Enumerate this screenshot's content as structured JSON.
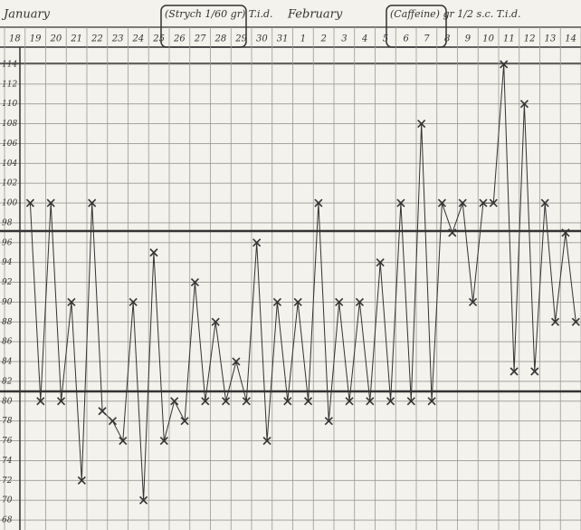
{
  "chart_data": {
    "type": "line",
    "months": [
      "January",
      "February"
    ],
    "annotations": [
      "(Strych 1/60 gr) T.i.d.",
      "(Caffeine) gr 1/2 s.c. T.i.d."
    ],
    "categories": [
      "18",
      null,
      "19",
      null,
      "20",
      null,
      "21",
      null,
      "22",
      null,
      "23",
      null,
      "24",
      null,
      "25",
      null,
      "26",
      null,
      "27",
      null,
      "28",
      null,
      "29",
      null,
      "30",
      null,
      "31",
      null,
      "1",
      null,
      "2",
      null,
      "3",
      null,
      "4",
      null,
      "5",
      null,
      "6",
      null,
      "7",
      null,
      "8",
      null,
      "9",
      null,
      "10",
      null,
      "11",
      null,
      "12",
      null,
      "13",
      null,
      "14",
      null
    ],
    "series": [
      {
        "color": "#333333",
        "values": [
          null,
          null,
          100,
          80,
          100,
          80,
          90,
          72,
          100,
          79,
          78,
          76,
          90,
          70,
          95,
          76,
          80,
          78,
          92,
          80,
          88,
          80,
          84,
          80,
          96,
          76,
          90,
          80,
          90,
          80,
          100,
          78,
          90,
          80,
          90,
          80,
          94,
          80,
          100,
          80,
          108,
          80,
          100,
          97,
          100,
          90,
          100,
          100,
          114,
          83,
          110,
          83,
          100,
          88,
          97,
          88
        ]
      }
    ],
    "ylim": [
      67,
      115
    ],
    "yticks": [
      114,
      112,
      110,
      108,
      106,
      104,
      102,
      100,
      98,
      96,
      94,
      92,
      90,
      88,
      86,
      84,
      82,
      80,
      78,
      76,
      74,
      72,
      70,
      68
    ],
    "grid": true
  }
}
